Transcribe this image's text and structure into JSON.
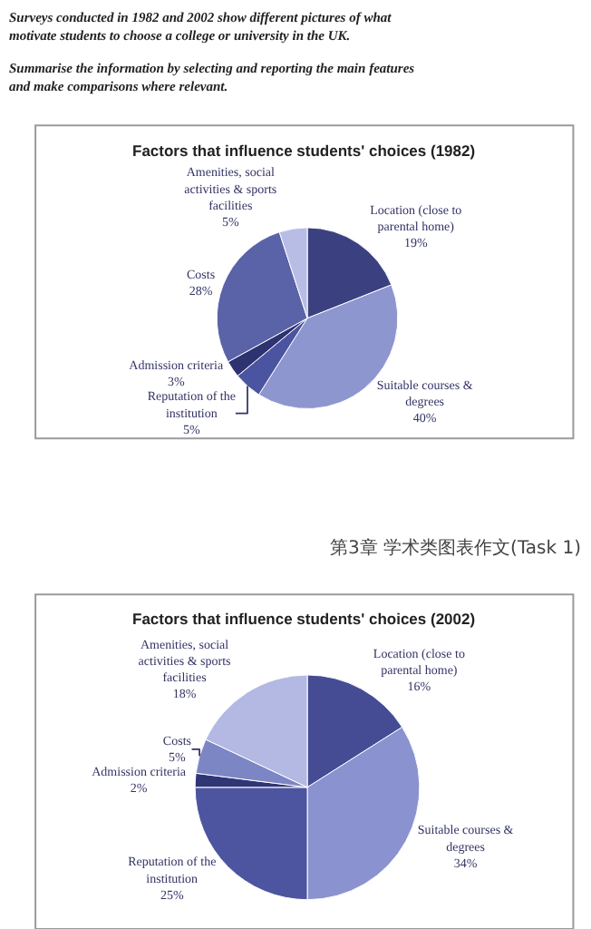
{
  "chart_data": [
    {
      "type": "pie",
      "title": "Factors that influence students' choices (1982)",
      "annotations": [
        "Surveys conducted in 1982 and 2002 show different pictures of what motivate students to choose a college or university in the UK.",
        "Summarise the information by selecting and reporting the main features and make comparisons where relevant."
      ],
      "categories": [
        "Location (close to parental home)",
        "Suitable courses & degrees",
        "Reputation of the institution",
        "Admission criteria",
        "Costs",
        "Amenities, social activities & sports facilities"
      ],
      "values": [
        19,
        40,
        5,
        3,
        28,
        5
      ],
      "value_labels": [
        "19%",
        "40%",
        "5%",
        "3%",
        "28%",
        "5%"
      ],
      "colors": [
        "#3b4180",
        "#8e96cf",
        "#4a54a0",
        "#2d3370",
        "#5a62a8",
        "#b8bde6"
      ]
    },
    {
      "type": "pie",
      "title": "Factors that influence students' choices (2002)",
      "annotations": [
        "第3章 学术类图表作文(Task 1)"
      ],
      "categories": [
        "Location (close to parental home)",
        "Suitable courses & degrees",
        "Reputation of the institution",
        "Admission criteria",
        "Costs",
        "Amenities, social activities & sports facilities"
      ],
      "values": [
        16,
        34,
        25,
        2,
        5,
        18
      ],
      "value_labels": [
        "16%",
        "34%",
        "25%",
        "2%",
        "5%",
        "18%"
      ],
      "colors": [
        "#454c94",
        "#8a92d0",
        "#4d55a0",
        "#2f3676",
        "#7d86c4",
        "#b3b9e3"
      ]
    }
  ]
}
